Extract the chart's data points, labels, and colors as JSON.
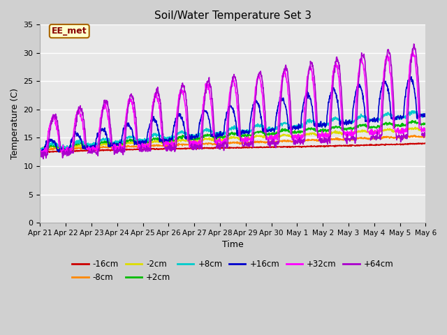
{
  "title": "Soil/Water Temperature Set 3",
  "xlabel": "Time",
  "ylabel": "Temperature (C)",
  "ylim": [
    0,
    35
  ],
  "xlim": [
    0,
    15
  ],
  "fig_bg_color": "#d0d0d0",
  "plot_bg_color": "#e8e8e8",
  "annotation_text": "EE_met",
  "annotation_bg": "#ffffcc",
  "annotation_border": "#aa6600",
  "annotation_text_color": "#880000",
  "series_colors": {
    "-16cm": "#cc0000",
    "-8cm": "#ff8800",
    "-2cm": "#dddd00",
    "+2cm": "#00bb00",
    "+8cm": "#00cccc",
    "+16cm": "#0000cc",
    "+32cm": "#ff00ff",
    "+64cm": "#aa00cc"
  },
  "tick_labels": [
    "Apr 21",
    "Apr 22",
    "Apr 23",
    "Apr 24",
    "Apr 25",
    "Apr 26",
    "Apr 27",
    "Apr 28",
    "Apr 29",
    "Apr 30",
    "May 1",
    "May 2",
    "May 3",
    "May 4",
    "May 5",
    "May 6"
  ],
  "tick_positions": [
    0,
    1,
    2,
    3,
    4,
    5,
    6,
    7,
    8,
    9,
    10,
    11,
    12,
    13,
    14,
    15
  ],
  "yticks": [
    0,
    5,
    10,
    15,
    20,
    25,
    30,
    35
  ]
}
